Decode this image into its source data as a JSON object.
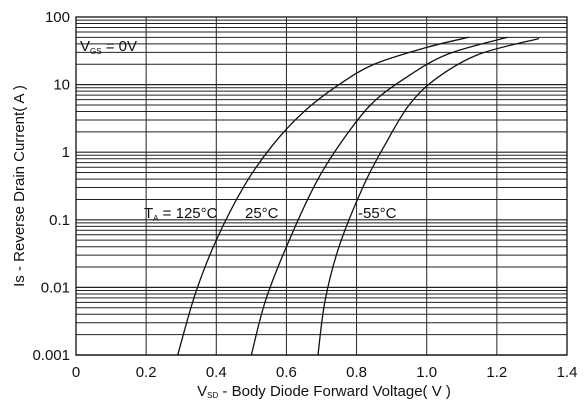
{
  "chart_data": {
    "type": "line",
    "title": "",
    "xlabel": {
      "prefix": "V",
      "sub": "SD",
      "rest": " - Body Diode Forward Voltage( V )"
    },
    "ylabel": "Is - Reverse Drain Current( A )",
    "xlim": [
      0,
      1.4
    ],
    "ylim": [
      0.001,
      100
    ],
    "yscale": "log",
    "grid": true,
    "x_ticks": [
      0,
      0.2,
      0.4,
      0.6,
      0.8,
      1.0,
      1.2,
      1.4
    ],
    "x_tick_labels": [
      "0",
      "0.2",
      "0.4",
      "0.6",
      "0.8",
      "1.0",
      "1.2",
      "1.4"
    ],
    "y_ticks": [
      0.001,
      0.01,
      0.1,
      1,
      10,
      100
    ],
    "y_tick_labels": [
      "0.001",
      "0.01",
      "0.1",
      "1",
      "10",
      "100"
    ],
    "annotations": {
      "vgs": {
        "prefix": "V",
        "sub": "GS",
        "rest": " = 0V"
      },
      "ta": {
        "prefix": "T",
        "sub": "A",
        "rest": " = 125°C"
      },
      "t25": "25°C",
      "tm55": "-55°C"
    },
    "series": [
      {
        "points": [
          [
            0.29,
            0.001
          ],
          [
            0.34,
            0.008
          ],
          [
            0.4,
            0.05
          ],
          [
            0.48,
            0.32
          ],
          [
            0.56,
            1.26
          ],
          [
            0.65,
            3.98
          ],
          [
            0.75,
            10
          ],
          [
            0.85,
            20
          ],
          [
            1.0,
            35.5
          ],
          [
            1.12,
            50.1
          ]
        ]
      },
      {
        "points": [
          [
            0.5,
            0.001
          ],
          [
            0.54,
            0.0063
          ],
          [
            0.6,
            0.04
          ],
          [
            0.68,
            0.32
          ],
          [
            0.75,
            1.26
          ],
          [
            0.84,
            5.01
          ],
          [
            0.94,
            12.6
          ],
          [
            1.06,
            28.2
          ],
          [
            1.23,
            50.1
          ]
        ]
      },
      {
        "points": [
          [
            0.69,
            0.001
          ],
          [
            0.71,
            0.0063
          ],
          [
            0.75,
            0.04
          ],
          [
            0.82,
            0.32
          ],
          [
            0.88,
            1.26
          ],
          [
            0.95,
            5.01
          ],
          [
            1.03,
            12.6
          ],
          [
            1.15,
            28.2
          ],
          [
            1.32,
            47.9
          ]
        ]
      }
    ]
  }
}
